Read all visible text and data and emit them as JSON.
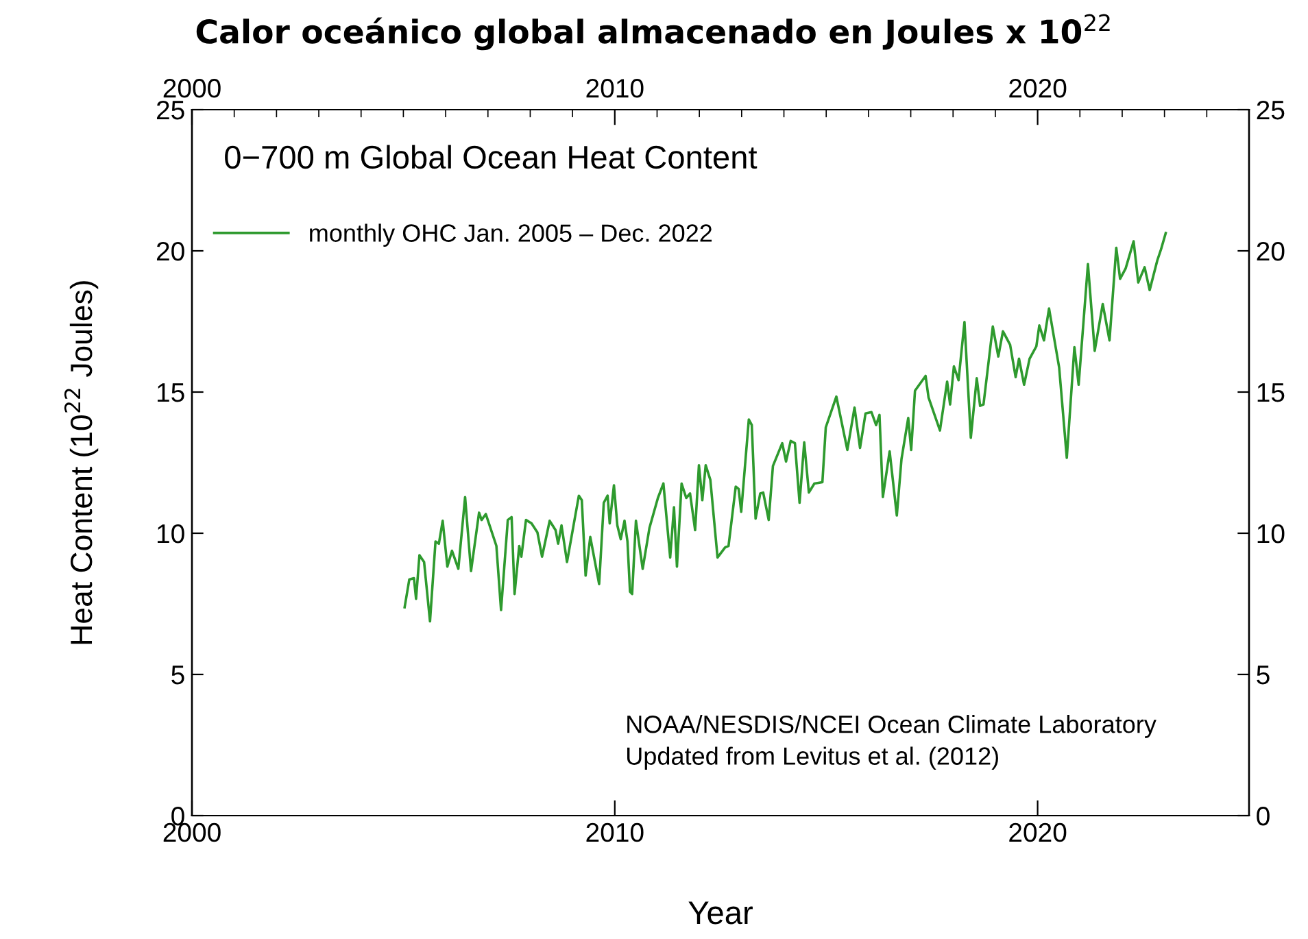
{
  "chart_data": {
    "type": "line",
    "title": "Calor oceánico global almacenado en Joules x 10$^{22}$",
    "subtitle": "0−700 m Global Ocean Heat Content",
    "xlabel": "Year",
    "ylabel": "Heat Content (10$^{22}$ Joules)",
    "annotations": [
      "NOAA/NESDIS/NCEI Ocean Climate Laboratory",
      "Updated from Levitus et al. (2012)"
    ],
    "xlim": [
      2000,
      2025
    ],
    "xticks": [
      2000,
      2010,
      2020
    ],
    "x2lim": [
      2000,
      2025
    ],
    "x2ticks": [
      2000,
      2010,
      2020
    ],
    "ylim": [
      0,
      25
    ],
    "yticks": [
      0,
      5,
      10,
      15,
      20,
      25
    ],
    "y2lim": [
      0,
      25
    ],
    "y2ticks": [
      0,
      5,
      10,
      15,
      20,
      25
    ],
    "grid": false,
    "legend": "top left",
    "marker": "none",
    "line_style": "solid",
    "series": [
      {
        "name": "monthly OHC Jan. 2005 – Dec. 2022",
        "color": "#2e9a2e",
        "x": [
          2005.03,
          2005.14,
          2005.25,
          2005.3,
          2005.38,
          2005.49,
          2005.63,
          2005.76,
          2005.84,
          2005.93,
          2006.04,
          2006.15,
          2006.3,
          2006.46,
          2006.6,
          2006.79,
          2006.85,
          2006.95,
          2007.2,
          2007.31,
          2007.47,
          2007.56,
          2007.63,
          2007.74,
          2007.79,
          2007.9,
          2008.03,
          2008.17,
          2008.28,
          2008.46,
          2008.6,
          2008.66,
          2008.74,
          2008.87,
          2009.15,
          2009.22,
          2009.31,
          2009.42,
          2009.63,
          2009.74,
          2009.83,
          2009.88,
          2009.98,
          2010.06,
          2010.14,
          2010.23,
          2010.3,
          2010.36,
          2010.41,
          2010.5,
          2010.66,
          2010.82,
          2011.02,
          2011.15,
          2011.31,
          2011.4,
          2011.47,
          2011.58,
          2011.69,
          2011.78,
          2011.9,
          2011.99,
          2012.07,
          2012.15,
          2012.26,
          2012.43,
          2012.61,
          2012.69,
          2012.86,
          2012.93,
          2012.99,
          2013.17,
          2013.24,
          2013.33,
          2013.44,
          2013.51,
          2013.64,
          2013.74,
          2013.96,
          2014.05,
          2014.16,
          2014.26,
          2014.37,
          2014.48,
          2014.59,
          2014.72,
          2014.91,
          2014.99,
          2015.24,
          2015.5,
          2015.67,
          2015.8,
          2015.93,
          2016.07,
          2016.18,
          2016.26,
          2016.34,
          2016.5,
          2016.67,
          2016.78,
          2016.94,
          2017.01,
          2017.1,
          2017.35,
          2017.42,
          2017.69,
          2017.86,
          2017.93,
          2018.02,
          2018.13,
          2018.27,
          2018.42,
          2018.56,
          2018.64,
          2018.72,
          2018.94,
          2019.07,
          2019.18,
          2019.35,
          2019.48,
          2019.56,
          2019.68,
          2019.81,
          2019.97,
          2020.04,
          2020.15,
          2020.27,
          2020.51,
          2020.69,
          2020.87,
          2020.97,
          2021.19,
          2021.35,
          2021.54,
          2021.7,
          2021.86,
          2021.95,
          2022.08,
          2022.27,
          2022.38,
          2022.53,
          2022.65,
          2022.83,
          2022.92,
          2023.03
        ],
        "values": [
          7.38,
          8.36,
          8.41,
          7.68,
          9.22,
          8.98,
          6.88,
          9.71,
          9.63,
          10.44,
          8.82,
          9.38,
          8.74,
          11.28,
          8.66,
          10.73,
          10.47,
          10.68,
          9.55,
          7.28,
          10.47,
          10.57,
          7.85,
          9.55,
          9.17,
          10.47,
          10.35,
          10.03,
          9.17,
          10.44,
          10.11,
          9.63,
          10.28,
          8.98,
          11.33,
          11.17,
          8.5,
          9.87,
          8.2,
          11.08,
          11.33,
          10.35,
          11.7,
          10.28,
          9.79,
          10.44,
          9.71,
          7.93,
          7.85,
          10.44,
          8.74,
          10.19,
          11.25,
          11.76,
          9.14,
          10.92,
          8.82,
          11.76,
          11.25,
          11.41,
          10.11,
          12.41,
          11.17,
          12.41,
          11.89,
          9.14,
          9.5,
          9.55,
          11.65,
          11.57,
          10.76,
          14.03,
          13.83,
          10.52,
          11.41,
          11.44,
          10.47,
          12.38,
          13.19,
          12.54,
          13.27,
          13.19,
          11.08,
          13.22,
          11.44,
          11.76,
          11.81,
          13.75,
          14.84,
          12.95,
          14.45,
          13.02,
          14.24,
          14.29,
          13.83,
          14.19,
          11.28,
          12.9,
          10.63,
          12.62,
          14.08,
          12.95,
          15.05,
          15.57,
          14.81,
          13.64,
          15.37,
          14.56,
          15.91,
          15.42,
          17.48,
          13.38,
          15.49,
          14.51,
          14.56,
          17.32,
          16.26,
          17.15,
          16.67,
          15.53,
          16.18,
          15.26,
          16.18,
          16.62,
          17.36,
          16.83,
          17.96,
          15.86,
          12.67,
          16.59,
          15.26,
          19.53,
          16.46,
          18.12,
          16.83,
          20.11,
          19.01,
          19.37,
          20.34,
          18.88,
          19.42,
          18.61,
          19.66,
          20.06,
          20.63
        ]
      }
    ]
  }
}
